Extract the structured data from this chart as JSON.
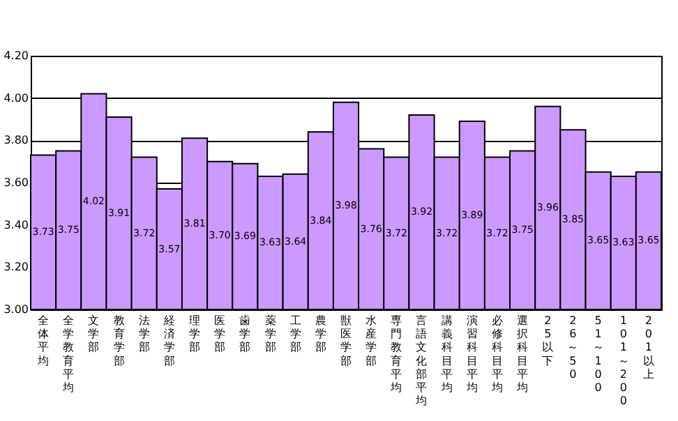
{
  "chart_data": {
    "type": "bar",
    "categories": [
      "全体平均",
      "全学教育平均",
      "文学部",
      "教育学部",
      "法学部",
      "経済学部",
      "理学部",
      "医学部",
      "歯学部",
      "薬学部",
      "工学部",
      "農学部",
      "獣医学部",
      "水産学部",
      "専門教育平均",
      "言語文化部平均",
      "講義科目平均",
      "演習科目平均",
      "必修科目平均",
      "選択科目平均",
      "25以下",
      "26～50",
      "51～100",
      "101～200",
      "201以上"
    ],
    "values": [
      3.73,
      3.75,
      4.02,
      3.91,
      3.72,
      3.57,
      3.81,
      3.7,
      3.69,
      3.63,
      3.64,
      3.84,
      3.98,
      3.76,
      3.72,
      3.92,
      3.72,
      3.89,
      3.72,
      3.75,
      3.96,
      3.85,
      3.65,
      3.63,
      3.65
    ],
    "value_labels": [
      "3.73",
      "3.75",
      "4.02",
      "3.91",
      "3.72",
      "3.57",
      "3.81",
      "3.70",
      "3.69",
      "3.63",
      "3.64",
      "3.84",
      "3.98",
      "3.76",
      "3.72",
      "3.92",
      "3.72",
      "3.89",
      "3.72",
      "3.75",
      "3.96",
      "3.85",
      "3.65",
      "3.63",
      "3.65"
    ],
    "color": "#cc99ff",
    "ylim": [
      3.0,
      4.2
    ],
    "yticks": [
      {
        "value": 3.0,
        "label": "3.00"
      },
      {
        "value": 3.2,
        "label": "3.20"
      },
      {
        "value": 3.4,
        "label": "3.40"
      },
      {
        "value": 3.6,
        "label": "3.60"
      },
      {
        "value": 3.8,
        "label": "3.80"
      },
      {
        "value": 4.0,
        "label": "4.00"
      },
      {
        "value": 4.2,
        "label": "4.20"
      }
    ],
    "grid": "y"
  }
}
